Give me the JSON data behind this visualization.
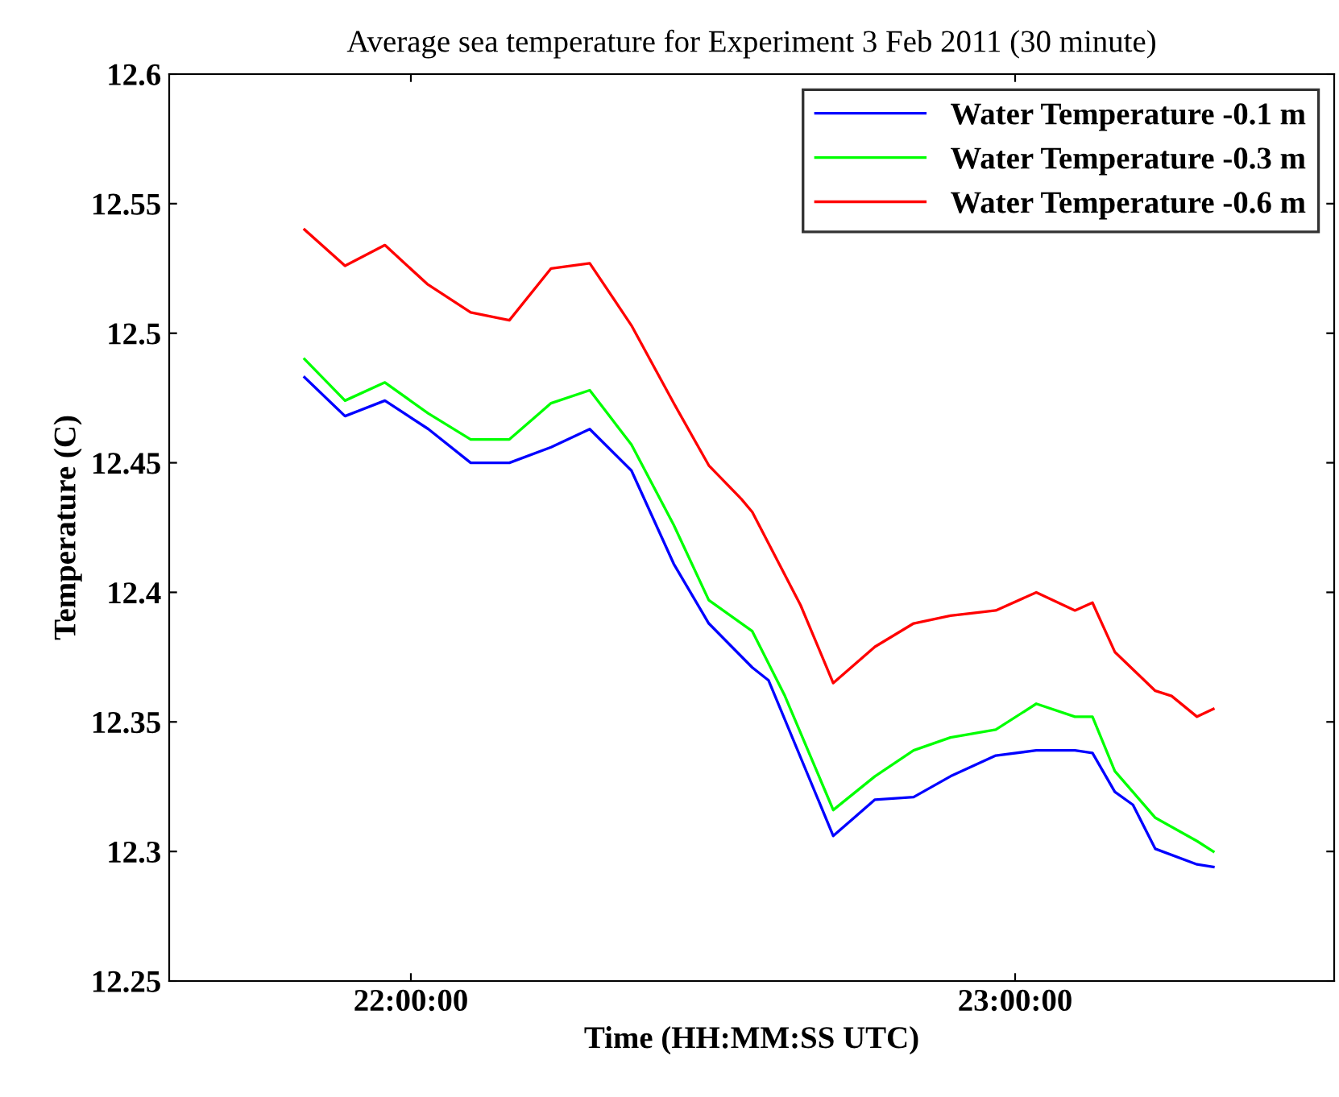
{
  "chart_data": {
    "type": "line",
    "title": "Average sea temperature for Experiment 3 Feb 2011 (30 minute)",
    "xlabel": "Time (HH:MM:SS UTC)",
    "ylabel": "Temperature (C)",
    "xlim": [
      21.6,
      23.528
    ],
    "xticks": [
      {
        "value": 22,
        "label": "22:00:00"
      },
      {
        "value": 23,
        "label": "23:00:00"
      }
    ],
    "ylim": [
      12.25,
      12.6
    ],
    "yticks": [
      12.25,
      12.3,
      12.35,
      12.4,
      12.45,
      12.5,
      12.55,
      12.6
    ],
    "grid": false,
    "legend": "top right",
    "marker": "none",
    "line_style": "solid",
    "series": [
      {
        "name": "Water Temperature -0.1 m",
        "color": "#0000ff",
        "x": [
          21.824,
          21.891,
          21.957,
          22.029,
          22.099,
          22.163,
          22.232,
          22.296,
          22.365,
          22.435,
          22.493,
          22.565,
          22.592,
          22.699,
          22.768,
          22.832,
          22.893,
          22.968,
          23.035,
          23.099,
          23.128,
          23.165,
          23.195,
          23.232,
          23.301,
          23.328
        ],
        "values": [
          12.483,
          12.468,
          12.474,
          12.463,
          12.45,
          12.45,
          12.456,
          12.463,
          12.447,
          12.411,
          12.388,
          12.371,
          12.366,
          12.306,
          12.32,
          12.321,
          12.329,
          12.337,
          12.339,
          12.339,
          12.338,
          12.323,
          12.318,
          12.301,
          12.295,
          12.294
        ]
      },
      {
        "name": "Water Temperature -0.3 m",
        "color": "#00ff00",
        "x": [
          21.824,
          21.891,
          21.957,
          22.029,
          22.099,
          22.163,
          22.232,
          22.296,
          22.365,
          22.435,
          22.493,
          22.565,
          22.619,
          22.699,
          22.768,
          22.832,
          22.893,
          22.968,
          23.035,
          23.099,
          23.128,
          23.165,
          23.232,
          23.301,
          23.328
        ],
        "values": [
          12.49,
          12.474,
          12.481,
          12.469,
          12.459,
          12.459,
          12.473,
          12.478,
          12.457,
          12.426,
          12.397,
          12.385,
          12.36,
          12.316,
          12.329,
          12.339,
          12.344,
          12.347,
          12.357,
          12.352,
          12.352,
          12.331,
          12.313,
          12.304,
          12.3
        ]
      },
      {
        "name": "Water Temperature -0.6 m",
        "color": "#ff0000",
        "x": [
          21.824,
          21.891,
          21.957,
          22.027,
          22.099,
          22.163,
          22.232,
          22.296,
          22.365,
          22.435,
          22.493,
          22.547,
          22.565,
          22.645,
          22.699,
          22.768,
          22.832,
          22.893,
          22.968,
          23.035,
          23.099,
          23.128,
          23.165,
          23.232,
          23.259,
          23.301,
          23.328
        ],
        "values": [
          12.54,
          12.526,
          12.534,
          12.519,
          12.508,
          12.505,
          12.525,
          12.527,
          12.503,
          12.473,
          12.449,
          12.436,
          12.431,
          12.395,
          12.365,
          12.379,
          12.388,
          12.391,
          12.393,
          12.4,
          12.393,
          12.396,
          12.377,
          12.362,
          12.36,
          12.352,
          12.355
        ]
      }
    ]
  }
}
